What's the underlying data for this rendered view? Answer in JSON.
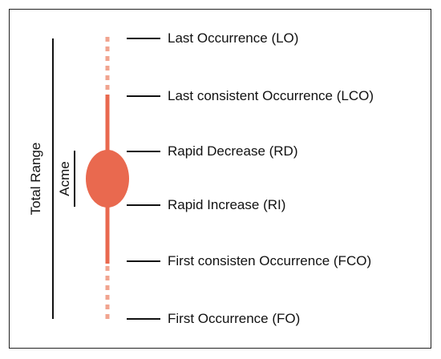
{
  "diagram": {
    "colors": {
      "range_bar": "#e9694f",
      "range_bar_faint": "#f1a48f",
      "acme": "#e9694f",
      "lines": "#111111"
    },
    "bracket_labels": {
      "total_range": "Total Range",
      "acme": "Acme"
    },
    "events": [
      {
        "id": "lo",
        "label": "Last Occurrence (LO)"
      },
      {
        "id": "lco",
        "label": "Last consistent Occurrence (LCO)"
      },
      {
        "id": "rd",
        "label": "Rapid Decrease (RD)"
      },
      {
        "id": "ri",
        "label": "Rapid Increase (RI)"
      },
      {
        "id": "fco",
        "label": "First consisten Occurrence (FCO)"
      },
      {
        "id": "fo",
        "label": "First Occurrence (FO)"
      }
    ]
  }
}
